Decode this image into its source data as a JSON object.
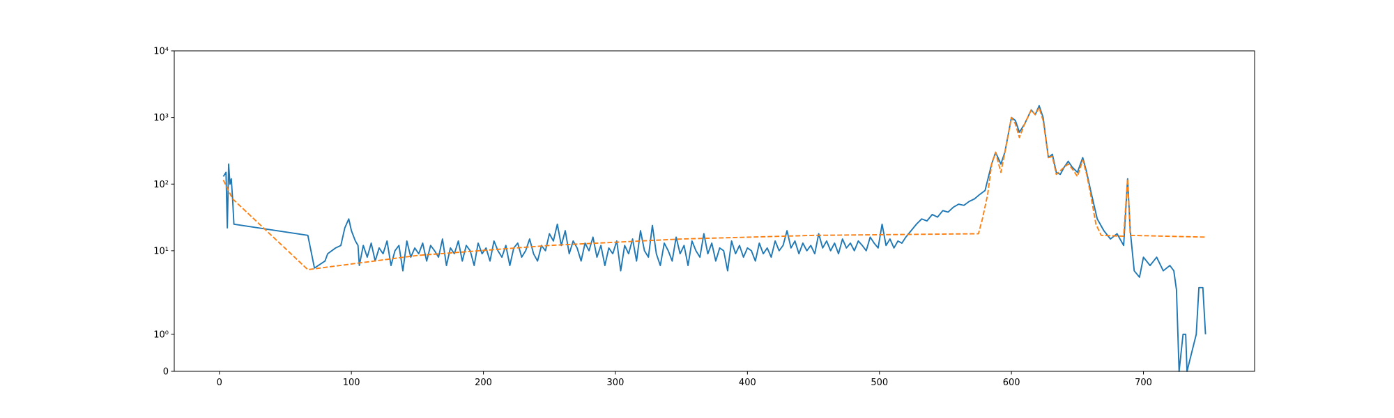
{
  "chart_data": {
    "type": "line",
    "yscale": "symlog",
    "linthresh": 2,
    "xlim": [
      -34.2,
      784.2
    ],
    "xticks": [
      0,
      100,
      200,
      300,
      400,
      500,
      600,
      700
    ],
    "ylim": [
      0,
      10000
    ],
    "yticks": [
      0,
      {
        "value": 1,
        "label": "10⁰"
      },
      {
        "value": 10,
        "label": "10¹"
      },
      {
        "value": 100,
        "label": "10²"
      },
      {
        "value": 1000,
        "label": "10³"
      },
      {
        "value": 10000,
        "label": "10⁴"
      }
    ],
    "series": [
      {
        "color": "#1f77b4",
        "linestyle": "solid",
        "x": [
          3,
          5,
          6,
          7,
          8,
          9,
          10,
          11,
          67,
          72,
          80,
          82,
          88,
          92,
          95,
          98,
          100,
          103,
          105,
          106,
          109,
          112,
          115,
          118,
          121,
          124,
          127,
          130,
          133,
          136,
          139,
          142,
          145,
          148,
          151,
          154,
          157,
          160,
          163,
          166,
          169,
          172,
          175,
          178,
          181,
          184,
          187,
          190,
          193,
          196,
          199,
          202,
          205,
          208,
          211,
          214,
          217,
          220,
          223,
          226,
          229,
          232,
          235,
          238,
          241,
          244,
          247,
          250,
          253,
          256,
          259,
          262,
          265,
          268,
          271,
          274,
          277,
          280,
          283,
          286,
          289,
          292,
          295,
          298,
          301,
          304,
          307,
          310,
          313,
          316,
          319,
          322,
          325,
          328,
          331,
          334,
          337,
          340,
          343,
          346,
          349,
          352,
          355,
          358,
          361,
          364,
          367,
          370,
          373,
          376,
          379,
          382,
          385,
          388,
          391,
          394,
          397,
          400,
          403,
          406,
          409,
          412,
          415,
          418,
          421,
          424,
          427,
          430,
          433,
          436,
          439,
          442,
          445,
          448,
          451,
          454,
          457,
          460,
          463,
          466,
          469,
          472,
          475,
          478,
          481,
          484,
          487,
          490,
          493,
          496,
          499,
          502,
          505,
          508,
          511,
          514,
          517,
          520,
          524,
          528,
          532,
          536,
          540,
          544,
          548,
          552,
          556,
          560,
          564,
          568,
          572,
          576,
          580,
          585,
          588,
          592,
          595,
          600,
          603,
          606,
          610,
          615,
          618,
          621,
          624,
          628,
          631,
          634,
          637,
          640,
          643,
          646,
          650,
          654,
          657,
          660,
          665,
          670,
          675,
          680,
          685,
          688,
          690,
          693,
          697,
          700,
          705,
          710,
          715,
          720,
          723,
          725,
          727,
          730,
          732,
          733,
          740,
          742,
          745,
          747
        ],
        "values": [
          130,
          150,
          22,
          200,
          100,
          120,
          60,
          25,
          17,
          5.5,
          7,
          9,
          11,
          12,
          22,
          30,
          20,
          14,
          12,
          6,
          12,
          8,
          13,
          7,
          11,
          9,
          14,
          6,
          10,
          12,
          5,
          14,
          8,
          11,
          9,
          13,
          7,
          12,
          10,
          8,
          15,
          6,
          11,
          9,
          14,
          7,
          12,
          10,
          6,
          13,
          9,
          11,
          7,
          14,
          10,
          8,
          12,
          6,
          11,
          13,
          8,
          10,
          15,
          9,
          7,
          12,
          10,
          18,
          14,
          25,
          12,
          20,
          9,
          14,
          11,
          7,
          13,
          10,
          16,
          8,
          12,
          6,
          11,
          9,
          14,
          5,
          12,
          9,
          15,
          7,
          20,
          10,
          8,
          24,
          9,
          6,
          13,
          10,
          7,
          16,
          9,
          12,
          6,
          14,
          10,
          8,
          18,
          9,
          13,
          7,
          11,
          10,
          5,
          14,
          9,
          12,
          8,
          11,
          10,
          7,
          13,
          9,
          11,
          8,
          14,
          10,
          12,
          20,
          11,
          14,
          9,
          13,
          10,
          12,
          9,
          18,
          11,
          14,
          10,
          13,
          9,
          15,
          11,
          13,
          10,
          14,
          12,
          10,
          16,
          13,
          11,
          25,
          12,
          15,
          11,
          14,
          13,
          16,
          20,
          25,
          30,
          28,
          35,
          32,
          40,
          38,
          45,
          50,
          48,
          55,
          60,
          70,
          80,
          200,
          300,
          200,
          300,
          1000,
          900,
          600,
          800,
          1300,
          1100,
          1500,
          1000,
          250,
          280,
          150,
          140,
          180,
          220,
          180,
          150,
          250,
          150,
          80,
          30,
          20,
          15,
          18,
          12,
          120,
          20,
          5,
          4,
          8,
          6,
          8,
          5,
          6,
          5,
          2.6,
          0,
          1,
          1,
          0,
          1,
          2.8,
          2.8,
          1
        ]
      },
      {
        "color": "#ff7f0e",
        "linestyle": "dashed",
        "x": [
          3,
          10,
          67,
          150,
          250,
          350,
          450,
          575,
          578,
          582,
          585,
          588,
          592,
          595,
          600,
          603,
          606,
          610,
          615,
          618,
          621,
          624,
          628,
          631,
          634,
          640,
          643,
          646,
          650,
          654,
          657,
          660,
          664,
          668,
          685,
          688,
          690,
          747
        ],
        "values": [
          115,
          60,
          5.2,
          8.5,
          12,
          15,
          17,
          18,
          30,
          70,
          200,
          300,
          150,
          300,
          1000,
          800,
          500,
          800,
          1300,
          1100,
          1400,
          900,
          250,
          260,
          140,
          180,
          200,
          170,
          130,
          230,
          140,
          70,
          25,
          17,
          16.5,
          120,
          17,
          16
        ]
      }
    ]
  }
}
